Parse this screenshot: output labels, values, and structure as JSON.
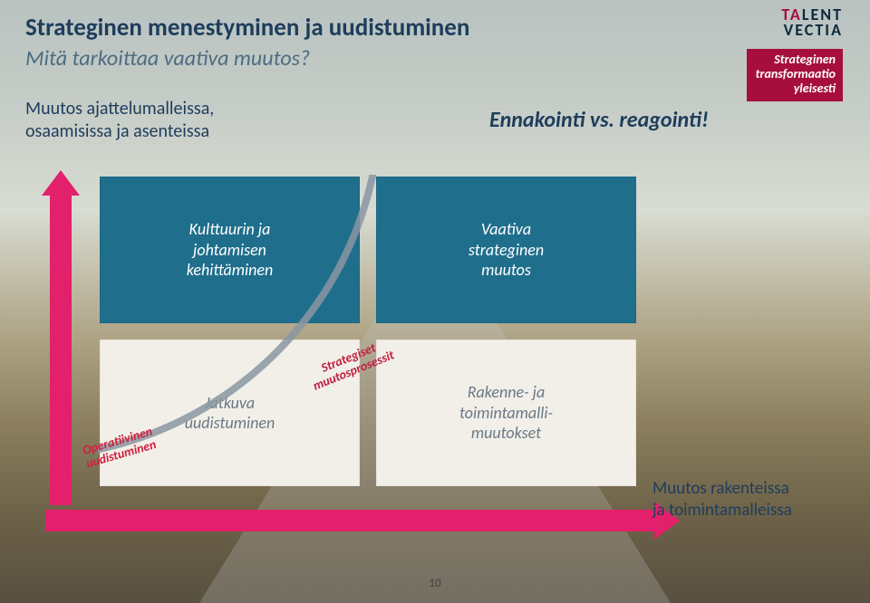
{
  "colors": {
    "title": "#1d3d5c",
    "accent": "#a60f3d",
    "subtitle": "#4d6c80",
    "bodytext": "#1d3d5c",
    "arrow": "#e3206b",
    "top_box": "#1f6e8c",
    "bottom_box": "#f2efe9",
    "bottom_box_text": "#6a7884",
    "arc": "#8a97a2",
    "ennakointi": "#1d3d5c",
    "operat": "#d0203e",
    "strateg": "#c02040"
  },
  "title_main": "Strateginen menestyminen ja uudistuminen",
  "title_sub": "Mitä tarkoittaa vaativa muutos?",
  "logo": {
    "line1a": "TA",
    "line1b": "LENT",
    "line2": "VECTIA"
  },
  "tag": {
    "l1": "Strateginen",
    "l2": "transformaatio",
    "l3": "yleisesti"
  },
  "muutos_left": {
    "l1": "Muutos ajattelumalleissa,",
    "l2": "osaamisissa ja  asenteissa"
  },
  "ennakointi": "Ennakointi vs. reagointi!",
  "box_tl": {
    "l1": "Kulttuurin ja",
    "l2": "johtamisen",
    "l3": "kehittäminen"
  },
  "box_tr": {
    "l1": "Vaativa",
    "l2": "strateginen",
    "l3": "muutos"
  },
  "box_bl": {
    "l1": "Jatkuva",
    "l2": "uudistuminen"
  },
  "box_br": {
    "l1": "Rakenne- ja",
    "l2": "toimintamalli-",
    "l3": "muutokset"
  },
  "rot_operat": {
    "l1": "Operatiivinen",
    "l2": "uudistuminen"
  },
  "rot_strateg": {
    "l1": "Strategiset",
    "l2": "muutosprosessit"
  },
  "muutos_right": {
    "l1": "Muutos rakenteissa",
    "l2": "ja toimintamalleissa"
  },
  "page": "10"
}
